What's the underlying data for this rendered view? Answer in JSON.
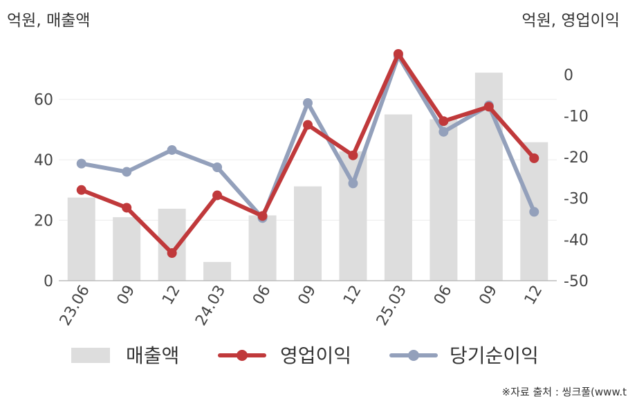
{
  "chart_data": {
    "type": "bar+line",
    "left_axis_title": "억원, 매출액",
    "right_axis_title": "억원, 영업이익",
    "categories": [
      "23.06",
      "09",
      "12",
      "24.03",
      "06",
      "09",
      "12",
      "25.03",
      "06",
      "09",
      "12"
    ],
    "left_axis": {
      "min": 0,
      "max": 75,
      "ticks": [
        0,
        20,
        40,
        60
      ]
    },
    "right_axis": {
      "min": -50,
      "max": 5,
      "ticks": [
        0,
        -10,
        -20,
        -30,
        -40,
        -50
      ]
    },
    "series": [
      {
        "name": "매출액",
        "type": "bar",
        "axis": "left",
        "color": "#dddddd",
        "values": [
          27.5,
          21,
          23.8,
          6.2,
          21.6,
          31.2,
          42.8,
          55,
          53.4,
          68.8,
          45.8
        ]
      },
      {
        "name": "영업이익",
        "type": "line",
        "axis": "right",
        "color": "#c0393b",
        "values": [
          -28,
          -32.3,
          -43.3,
          -29.3,
          -34.3,
          -12.2,
          -19.6,
          5,
          -11.3,
          -7.8,
          -20.3
        ]
      },
      {
        "name": "당기순이익",
        "type": "line",
        "axis": "right",
        "color": "#93a0bb",
        "values": [
          -21.6,
          -23.6,
          -18.3,
          -22.5,
          -34.8,
          -6.9,
          -26.4,
          4.5,
          -13.9,
          -7.5,
          -33.3
        ]
      }
    ],
    "gridlines": true,
    "legend_position": "bottom",
    "source_note": "※자료 출처 : 씽크풀(www.t"
  }
}
